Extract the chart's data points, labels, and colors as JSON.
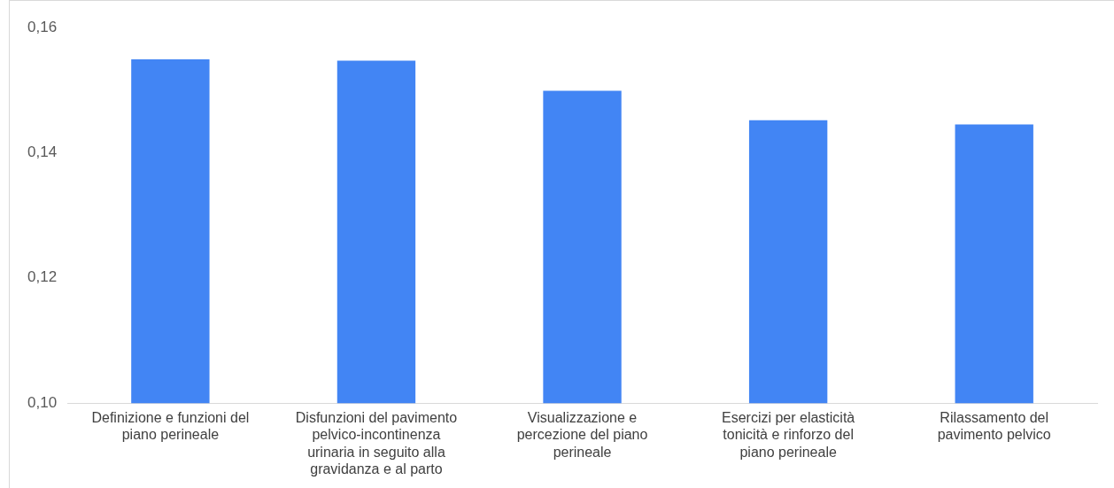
{
  "chart_data": {
    "type": "bar",
    "categories": [
      "Definizione e funzioni del piano perineale",
      "Disfunzioni del pavimento pelvico-incontinenza urinaria in seguito alla gravidanza e al parto",
      "Visualizzazione e percezione del piano perineale",
      "Esercizi per elasticità tonicità e rinforzo del piano perineale",
      "Rilassamento del pavimento pelvico"
    ],
    "values": [
      0.1549,
      0.1547,
      0.1499,
      0.1452,
      0.1445
    ],
    "color": "#4285f4",
    "ylim": [
      0.1,
      0.16
    ],
    "yticks": [
      {
        "value": 0.1,
        "label": "0,10"
      },
      {
        "value": 0.12,
        "label": "0,12"
      },
      {
        "value": 0.14,
        "label": "0,14"
      },
      {
        "value": 0.16,
        "label": "0,16"
      }
    ],
    "grid": false
  }
}
